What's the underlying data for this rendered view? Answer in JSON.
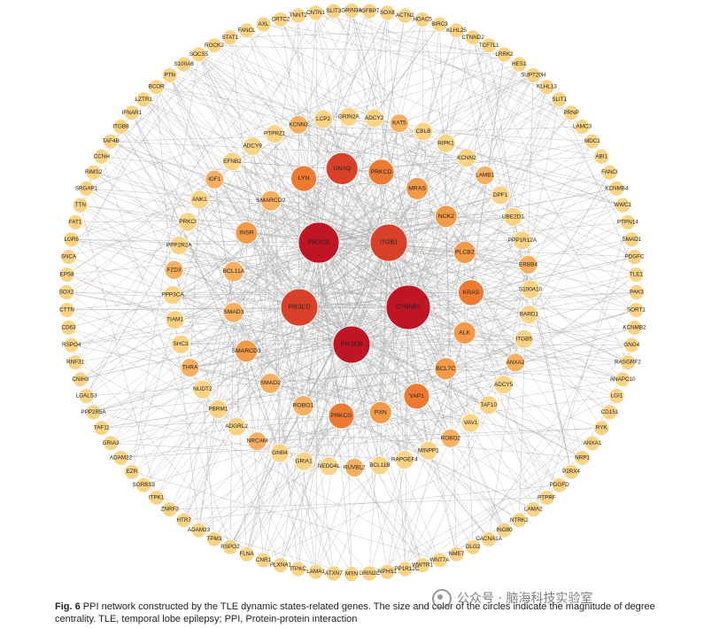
{
  "figure": {
    "caption_label": "Fig. 6",
    "caption_text": "PPI network constructed by the TLE dynamic states-related genes. The size and color of the circles indicate the magnitude of degree centrality. TLE, temporal lobe epilepsy; PPI, Protein-protein interaction",
    "watermark": "公众号 · 脑海科技实验室"
  },
  "colors": {
    "outer": "#fbd384",
    "second": "#f8b060",
    "third": "#f29a48",
    "fourth": "#ee7a32",
    "mid_red": "#d9402a",
    "core": "#c01525",
    "edge": "#a8a8a8"
  },
  "network": {
    "outer_ring": [
      "GRIN3A",
      "IGFBP7",
      "SOX8",
      "ACTN2",
      "HDAC5",
      "BIRC3",
      "KLHL25",
      "CTNND2",
      "TCF7L1",
      "LRRK2",
      "HES1",
      "SUPT20H",
      "KLHL13",
      "SLIT1",
      "PRNP",
      "LAMC3",
      "MDC1",
      "ABI1",
      "FANCI",
      "KCNMB4",
      "WWC1",
      "PTPN14",
      "SMAD1",
      "PDGFC",
      "TLE1",
      "PAK3",
      "SORT1",
      "KCNMB2",
      "GNG4",
      "RASGRF2",
      "ANAPC10",
      "LGI1",
      "CD151",
      "RYK",
      "ANXA1",
      "NRP1",
      "P2RX4",
      "PDGFD",
      "PTPRF",
      "LAMA2",
      "NTRK2",
      "INO80",
      "CACNA1A",
      "DLG2",
      "NME7",
      "WNT7A",
      "WWTR1",
      "PPP1R12C",
      "NPHS1",
      "GRIN2C",
      "MSN",
      "ATXN7",
      "LAMA1",
      "ITPKC",
      "PLXNA1",
      "CNR1",
      "FLNA",
      "RSPO2",
      "TPM3",
      "ADAM23",
      "HTR7",
      "ZNRF3",
      "ITPK1",
      "SORBS3",
      "EZR",
      "ADAM22",
      "GRIA3",
      "TAF11",
      "PPP2R5A",
      "LGALS3",
      "CNIH3",
      "RNF31",
      "RSPO4",
      "CD63",
      "CTTN",
      "SOX2",
      "EPS8",
      "SNCA",
      "LGR6",
      "FAT1",
      "TTN",
      "SRGAP1",
      "RIMS2",
      "CCNH",
      "TAF4B",
      "ITGB8",
      "IFNAR1",
      "LZTR1",
      "BCOR",
      "PTN",
      "S100A6",
      "SOCS5",
      "ROCK2",
      "STAT1",
      "FANCL",
      "AXL",
      "CRTC2",
      "TNNT2",
      "CNTN1",
      "SLIT3"
    ],
    "inner_ring": [
      "KAT5",
      "CBLB",
      "RIPK1",
      "KCNN2",
      "LAMB1",
      "DPF1",
      "UBE2D1",
      "PPP1R12A",
      "ERBB4",
      "S100A10",
      "BARD1",
      "ITGB5",
      "ANXA2",
      "ADCY5",
      "TAF10",
      "VAV1",
      "ROBO2",
      "MINPP1",
      "RAPGEF4",
      "BCL11B",
      "RUVBL2",
      "NEDD4L",
      "GRIA1",
      "GNB4",
      "NRCAM",
      "ADGRL2",
      "PBRM1",
      "NUDT2",
      "THRA",
      "SHC3",
      "TIAM1",
      "PPP3CA",
      "FZD3",
      "PPP2R2A",
      "PRKCI",
      "ANK1",
      "IGF1",
      "EFNB2",
      "ADCY9",
      "PTPRZ1",
      "KCNN3",
      "LCP2",
      "GRIN2A",
      "ADCY2"
    ],
    "mid_nodes": [
      {
        "label": "GNAQ",
        "tier": "mid_red"
      },
      {
        "label": "PRKCD",
        "tier": "fourth"
      },
      {
        "label": "MRAS",
        "tier": "third"
      },
      {
        "label": "NCK2",
        "tier": "third"
      },
      {
        "label": "PLCB2",
        "tier": "third"
      },
      {
        "label": "KRAS",
        "tier": "fourth"
      },
      {
        "label": "ALK",
        "tier": "third"
      },
      {
        "label": "BCL7C",
        "tier": "third"
      },
      {
        "label": "YAP1",
        "tier": "fourth"
      },
      {
        "label": "PXN",
        "tier": "third"
      },
      {
        "label": "PRKCG",
        "tier": "fourth"
      },
      {
        "label": "ROBO1",
        "tier": "second"
      },
      {
        "label": "SMAD2",
        "tier": "second"
      },
      {
        "label": "SMARCD3",
        "tier": "third"
      },
      {
        "label": "SMAD3",
        "tier": "second"
      },
      {
        "label": "BCL11A",
        "tier": "second"
      },
      {
        "label": "INSR",
        "tier": "third"
      },
      {
        "label": "SMARCD2",
        "tier": "second"
      },
      {
        "label": "LYN",
        "tier": "fourth"
      }
    ],
    "core_nodes": [
      "PIK3CA",
      "ITGB1",
      "PIK3CD",
      "CTNNB1",
      "PIK3CB"
    ]
  }
}
